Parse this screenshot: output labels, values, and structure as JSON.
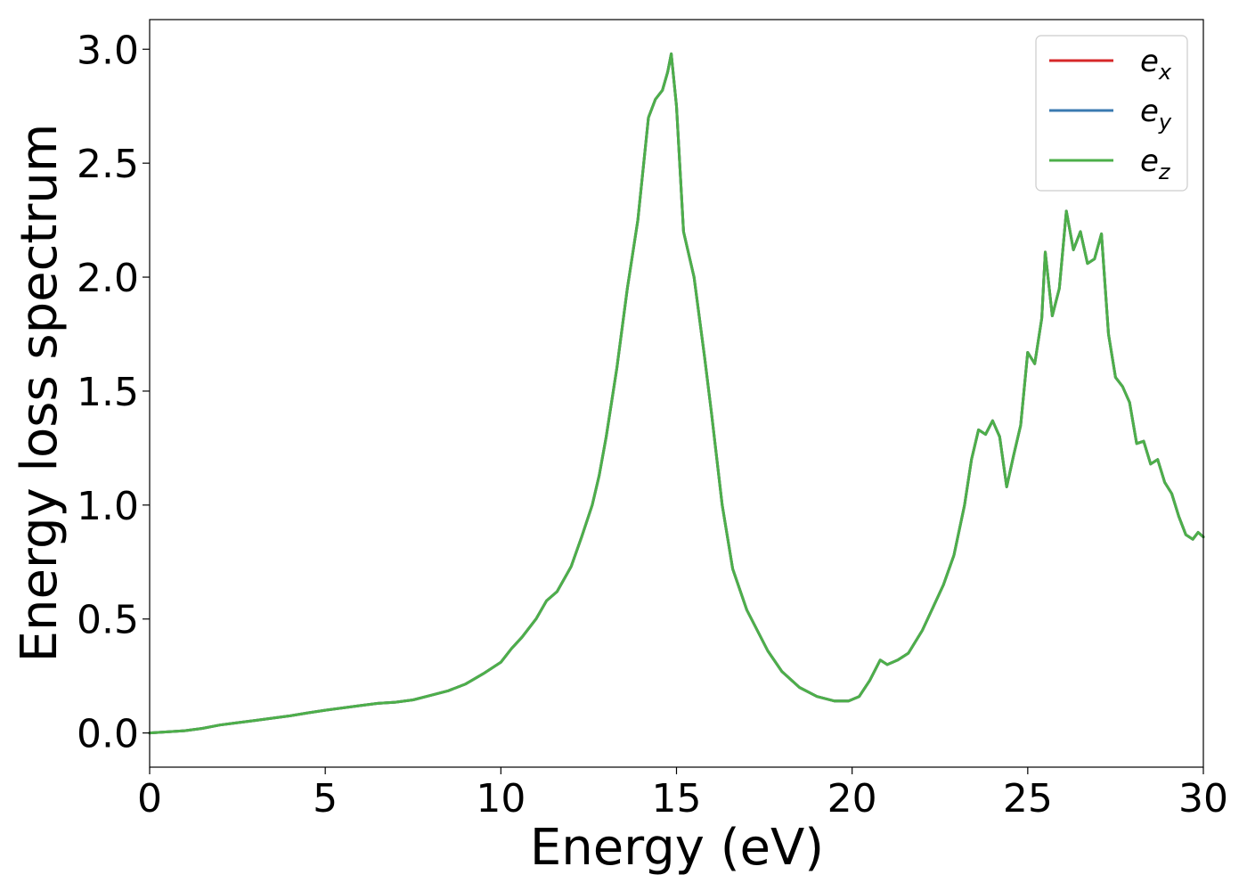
{
  "chart_data": {
    "type": "line",
    "xlabel": "Energy (eV)",
    "ylabel": "Energy loss spectrum",
    "xlim": [
      0,
      30
    ],
    "ylim": [
      -0.15,
      3.13
    ],
    "x_ticks": [
      "0",
      "5",
      "10",
      "15",
      "20",
      "25",
      "30"
    ],
    "y_ticks": [
      "0.0",
      "0.5",
      "1.0",
      "1.5",
      "2.0",
      "2.5",
      "3.0"
    ],
    "grid": false,
    "legend_position": "top-right",
    "legend": [
      {
        "base": "e",
        "sub": "x",
        "color": "#d62728"
      },
      {
        "base": "e",
        "sub": "y",
        "color": "#3a7ab0"
      },
      {
        "base": "e",
        "sub": "z",
        "color": "#4daf4a"
      }
    ],
    "series": [
      {
        "name": "e_x",
        "color": "#d62728",
        "x": [
          0,
          0.5,
          1,
          1.5,
          2,
          2.5,
          3,
          3.5,
          4,
          4.5,
          5,
          5.5,
          6,
          6.5,
          7,
          7.5,
          8,
          8.5,
          9,
          9.5,
          10,
          10.3,
          10.6,
          11,
          11.3,
          11.6,
          12,
          12.3,
          12.6,
          12.8,
          13,
          13.3,
          13.6,
          13.9,
          14.2,
          14.4,
          14.6,
          14.75,
          14.85,
          15,
          15.2,
          15.5,
          15.8,
          16,
          16.3,
          16.6,
          17,
          17.3,
          17.6,
          18,
          18.5,
          19,
          19.5,
          19.9,
          20.2,
          20.5,
          20.8,
          21,
          21.3,
          21.6,
          22,
          22.3,
          22.6,
          22.9,
          23.2,
          23.4,
          23.6,
          23.8,
          24,
          24.2,
          24.4,
          24.6,
          24.8,
          25,
          25.2,
          25.4,
          25.5,
          25.7,
          25.9,
          26.1,
          26.3,
          26.5,
          26.7,
          26.9,
          27.1,
          27.3,
          27.5,
          27.7,
          27.9,
          28.1,
          28.3,
          28.5,
          28.7,
          28.9,
          29.1,
          29.3,
          29.5,
          29.7,
          29.85,
          30
        ],
        "y": [
          0.0,
          0.005,
          0.01,
          0.02,
          0.035,
          0.045,
          0.055,
          0.065,
          0.075,
          0.088,
          0.1,
          0.11,
          0.12,
          0.13,
          0.135,
          0.145,
          0.165,
          0.185,
          0.215,
          0.26,
          0.31,
          0.37,
          0.42,
          0.5,
          0.58,
          0.62,
          0.73,
          0.86,
          1.0,
          1.13,
          1.3,
          1.6,
          1.95,
          2.25,
          2.7,
          2.78,
          2.82,
          2.9,
          2.98,
          2.75,
          2.2,
          2.0,
          1.65,
          1.4,
          1.0,
          0.72,
          0.54,
          0.45,
          0.36,
          0.27,
          0.2,
          0.16,
          0.14,
          0.14,
          0.16,
          0.23,
          0.32,
          0.3,
          0.32,
          0.35,
          0.45,
          0.55,
          0.65,
          0.78,
          1.0,
          1.2,
          1.33,
          1.31,
          1.37,
          1.3,
          1.08,
          1.22,
          1.35,
          1.67,
          1.62,
          1.82,
          2.11,
          1.83,
          1.95,
          2.29,
          2.12,
          2.2,
          2.06,
          2.08,
          2.19,
          1.75,
          1.56,
          1.52,
          1.45,
          1.27,
          1.28,
          1.18,
          1.2,
          1.1,
          1.05,
          0.95,
          0.87,
          0.85,
          0.88,
          0.86
        ]
      },
      {
        "name": "e_y",
        "color": "#3a7ab0",
        "x": [
          0,
          0.5,
          1,
          1.5,
          2,
          2.5,
          3,
          3.5,
          4,
          4.5,
          5,
          5.5,
          6,
          6.5,
          7,
          7.5,
          8,
          8.5,
          9,
          9.5,
          10,
          10.3,
          10.6,
          11,
          11.3,
          11.6,
          12,
          12.3,
          12.6,
          12.8,
          13,
          13.3,
          13.6,
          13.9,
          14.2,
          14.4,
          14.6,
          14.75,
          14.85,
          15,
          15.2,
          15.5,
          15.8,
          16,
          16.3,
          16.6,
          17,
          17.3,
          17.6,
          18,
          18.5,
          19,
          19.5,
          19.9,
          20.2,
          20.5,
          20.8,
          21,
          21.3,
          21.6,
          22,
          22.3,
          22.6,
          22.9,
          23.2,
          23.4,
          23.6,
          23.8,
          24,
          24.2,
          24.4,
          24.6,
          24.8,
          25,
          25.2,
          25.4,
          25.5,
          25.7,
          25.9,
          26.1,
          26.3,
          26.5,
          26.7,
          26.9,
          27.1,
          27.3,
          27.5,
          27.7,
          27.9,
          28.1,
          28.3,
          28.5,
          28.7,
          28.9,
          29.1,
          29.3,
          29.5,
          29.7,
          29.85,
          30
        ],
        "y": [
          0.0,
          0.005,
          0.01,
          0.02,
          0.035,
          0.045,
          0.055,
          0.065,
          0.075,
          0.088,
          0.1,
          0.11,
          0.12,
          0.13,
          0.135,
          0.145,
          0.165,
          0.185,
          0.215,
          0.26,
          0.31,
          0.37,
          0.42,
          0.5,
          0.58,
          0.62,
          0.73,
          0.86,
          1.0,
          1.13,
          1.3,
          1.6,
          1.95,
          2.25,
          2.7,
          2.78,
          2.82,
          2.9,
          2.98,
          2.75,
          2.2,
          2.0,
          1.65,
          1.4,
          1.0,
          0.72,
          0.54,
          0.45,
          0.36,
          0.27,
          0.2,
          0.16,
          0.14,
          0.14,
          0.16,
          0.23,
          0.32,
          0.3,
          0.32,
          0.35,
          0.45,
          0.55,
          0.65,
          0.78,
          1.0,
          1.2,
          1.33,
          1.31,
          1.37,
          1.3,
          1.08,
          1.22,
          1.35,
          1.67,
          1.62,
          1.82,
          2.11,
          1.83,
          1.95,
          2.29,
          2.12,
          2.2,
          2.06,
          2.08,
          2.19,
          1.75,
          1.56,
          1.52,
          1.45,
          1.27,
          1.28,
          1.18,
          1.2,
          1.1,
          1.05,
          0.95,
          0.87,
          0.85,
          0.88,
          0.86
        ]
      },
      {
        "name": "e_z",
        "color": "#4daf4a",
        "x": [
          0,
          0.5,
          1,
          1.5,
          2,
          2.5,
          3,
          3.5,
          4,
          4.5,
          5,
          5.5,
          6,
          6.5,
          7,
          7.5,
          8,
          8.5,
          9,
          9.5,
          10,
          10.3,
          10.6,
          11,
          11.3,
          11.6,
          12,
          12.3,
          12.6,
          12.8,
          13,
          13.3,
          13.6,
          13.9,
          14.2,
          14.4,
          14.6,
          14.75,
          14.85,
          15,
          15.2,
          15.5,
          15.8,
          16,
          16.3,
          16.6,
          17,
          17.3,
          17.6,
          18,
          18.5,
          19,
          19.5,
          19.9,
          20.2,
          20.5,
          20.8,
          21,
          21.3,
          21.6,
          22,
          22.3,
          22.6,
          22.9,
          23.2,
          23.4,
          23.6,
          23.8,
          24,
          24.2,
          24.4,
          24.6,
          24.8,
          25,
          25.2,
          25.4,
          25.5,
          25.7,
          25.9,
          26.1,
          26.3,
          26.5,
          26.7,
          26.9,
          27.1,
          27.3,
          27.5,
          27.7,
          27.9,
          28.1,
          28.3,
          28.5,
          28.7,
          28.9,
          29.1,
          29.3,
          29.5,
          29.7,
          29.85,
          30
        ],
        "y": [
          0.0,
          0.005,
          0.01,
          0.02,
          0.035,
          0.045,
          0.055,
          0.065,
          0.075,
          0.088,
          0.1,
          0.11,
          0.12,
          0.13,
          0.135,
          0.145,
          0.165,
          0.185,
          0.215,
          0.26,
          0.31,
          0.37,
          0.42,
          0.5,
          0.58,
          0.62,
          0.73,
          0.86,
          1.0,
          1.13,
          1.3,
          1.6,
          1.95,
          2.25,
          2.7,
          2.78,
          2.82,
          2.9,
          2.98,
          2.75,
          2.2,
          2.0,
          1.65,
          1.4,
          1.0,
          0.72,
          0.54,
          0.45,
          0.36,
          0.27,
          0.2,
          0.16,
          0.14,
          0.14,
          0.16,
          0.23,
          0.32,
          0.3,
          0.32,
          0.35,
          0.45,
          0.55,
          0.65,
          0.78,
          1.0,
          1.2,
          1.33,
          1.31,
          1.37,
          1.3,
          1.08,
          1.22,
          1.35,
          1.67,
          1.62,
          1.82,
          2.11,
          1.83,
          1.95,
          2.29,
          2.12,
          2.2,
          2.06,
          2.08,
          2.19,
          1.75,
          1.56,
          1.52,
          1.45,
          1.27,
          1.28,
          1.18,
          1.2,
          1.1,
          1.05,
          0.95,
          0.87,
          0.85,
          0.88,
          0.86
        ]
      }
    ]
  }
}
